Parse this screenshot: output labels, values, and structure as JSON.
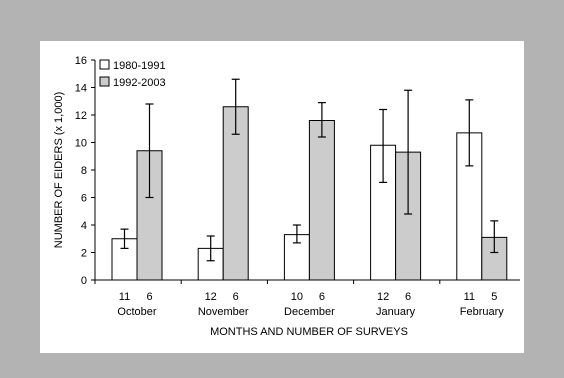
{
  "chart_data": {
    "type": "bar",
    "ylabel": "NUMBER OF EIDERS (x 1,000)",
    "xlabel": "MONTHS AND NUMBER OF SURVEYS",
    "ylim": [
      0,
      16
    ],
    "yticks": [
      "0",
      "2",
      "4",
      "6",
      "8",
      "10",
      "12",
      "14",
      "16"
    ],
    "grid": false,
    "legend_position": "top-left",
    "categories": [
      "October",
      "November",
      "December",
      "January",
      "February"
    ],
    "series": [
      {
        "name": "1980-1991",
        "color": "#ffffff",
        "values": [
          3.0,
          2.3,
          3.3,
          9.8,
          10.7
        ],
        "err_low": [
          2.3,
          1.4,
          2.7,
          7.1,
          8.3
        ],
        "err_high": [
          3.7,
          3.2,
          4.0,
          12.4,
          13.1
        ],
        "surveys": [
          "11",
          "12",
          "10",
          "12",
          "11"
        ]
      },
      {
        "name": "1992-2003",
        "color": "#cccccc",
        "values": [
          9.4,
          12.6,
          11.6,
          9.3,
          3.1
        ],
        "err_low": [
          6.0,
          10.6,
          10.4,
          4.8,
          2.0
        ],
        "err_high": [
          12.8,
          14.6,
          12.9,
          13.8,
          4.3
        ],
        "surveys": [
          "6",
          "6",
          "6",
          "6",
          "5"
        ]
      }
    ]
  }
}
